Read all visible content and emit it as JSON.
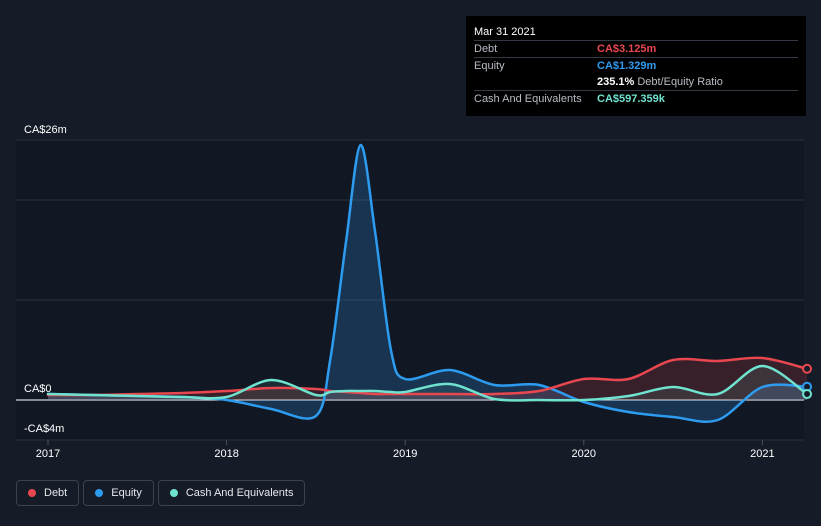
{
  "chart_data": {
    "type": "line",
    "title": "",
    "xlabel": "",
    "ylabel": "",
    "x": [
      2017.0,
      2017.25,
      2017.5,
      2017.75,
      2018.0,
      2018.25,
      2018.5,
      2018.58,
      2018.67,
      2018.75,
      2018.83,
      2018.92,
      2019.0,
      2019.25,
      2019.5,
      2019.75,
      2020.0,
      2020.25,
      2020.5,
      2020.75,
      2021.0,
      2021.25
    ],
    "xlim": [
      2016.83,
      2021.25
    ],
    "ylim": [
      -4,
      26
    ],
    "y_tick_labels": [
      "CA$26m",
      "CA$0",
      "-CA$4m"
    ],
    "x_tick_labels": [
      "2017",
      "2018",
      "2019",
      "2020",
      "2021"
    ],
    "series": [
      {
        "name": "Debt",
        "color": "#e8474f",
        "values": [
          0.5,
          0.5,
          0.6,
          0.7,
          0.9,
          1.2,
          1.1,
          0.9,
          0.8,
          0.7,
          0.6,
          0.6,
          0.6,
          0.6,
          0.6,
          0.9,
          2.1,
          2.1,
          4.0,
          3.9,
          4.2,
          3.125
        ]
      },
      {
        "name": "Equity",
        "color": "#2d9cf0",
        "values": [
          0.6,
          0.5,
          0.4,
          0.3,
          0.0,
          -0.9,
          -1.6,
          4.0,
          16.0,
          25.5,
          17.0,
          5.0,
          2.1,
          3.0,
          1.5,
          1.5,
          -0.2,
          -1.2,
          -1.7,
          -2.0,
          1.3,
          1.329
        ]
      },
      {
        "name": "Cash And Equivalents",
        "color": "#6fe3cf",
        "values": [
          0.6,
          0.5,
          0.4,
          0.3,
          0.3,
          2.0,
          0.5,
          0.8,
          0.9,
          0.9,
          0.9,
          0.8,
          0.8,
          1.6,
          0.1,
          0.0,
          0.0,
          0.4,
          1.3,
          0.6,
          3.4,
          0.597
        ]
      }
    ],
    "grid": true,
    "legend_position": "bottom-left"
  },
  "tooltip": {
    "date": "Mar 31 2021",
    "debt_label": "Debt",
    "debt_value": "CA$3.125m",
    "equity_label": "Equity",
    "equity_value": "CA$1.329m",
    "ratio_value": "235.1%",
    "ratio_label": "Debt/Equity Ratio",
    "cash_label": "Cash And Equivalents",
    "cash_value": "CA$597.359k"
  },
  "legend": {
    "debt": "Debt",
    "equity": "Equity",
    "cash": "Cash And Equivalents"
  },
  "colors": {
    "debt": "#e8474f",
    "equity": "#2d9cf0",
    "cash": "#6fe3cf",
    "background": "#151b27"
  }
}
